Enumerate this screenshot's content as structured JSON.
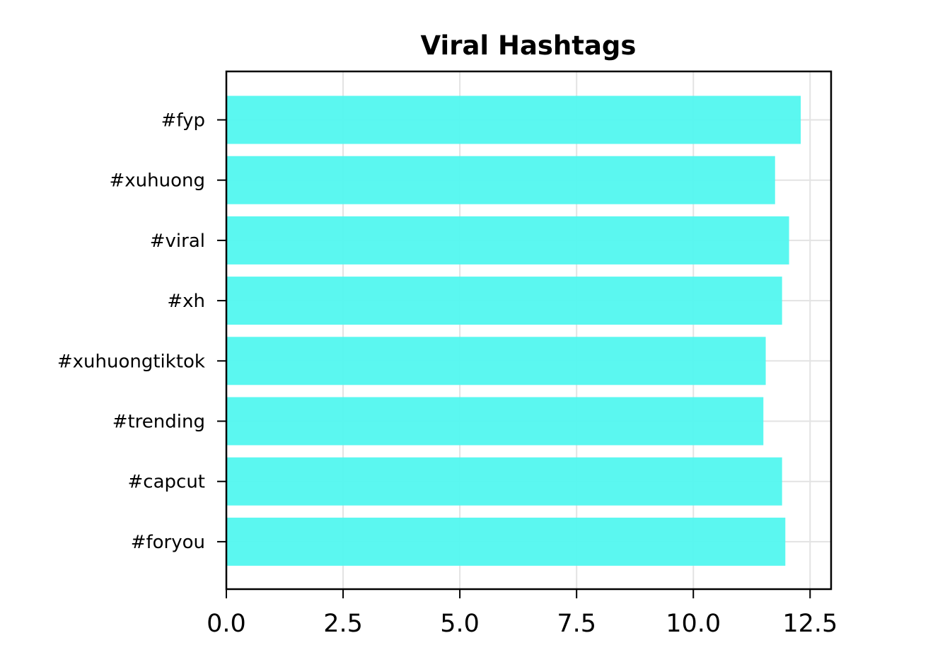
{
  "chart_data": {
    "type": "bar",
    "orientation": "horizontal",
    "title": "Viral Hashtags",
    "xlabel": "",
    "ylabel": "",
    "categories": [
      "#fyp",
      "#xuhuong",
      "#viral",
      "#xh",
      "#xuhuongtiktok",
      "#trending",
      "#capcut",
      "#foryou"
    ],
    "values": [
      12.3,
      11.75,
      12.05,
      11.9,
      11.55,
      11.5,
      11.9,
      11.97
    ],
    "xlim": [
      0,
      12.95
    ],
    "xticks": [
      0.0,
      2.5,
      5.0,
      7.5,
      10.0,
      12.5
    ],
    "xtick_labels": [
      "0.0",
      "2.5",
      "5.0",
      "7.5",
      "10.0",
      "12.5"
    ],
    "grid": true,
    "bar_color": "#52f7ef",
    "grid_color": "#e3e3e3"
  }
}
